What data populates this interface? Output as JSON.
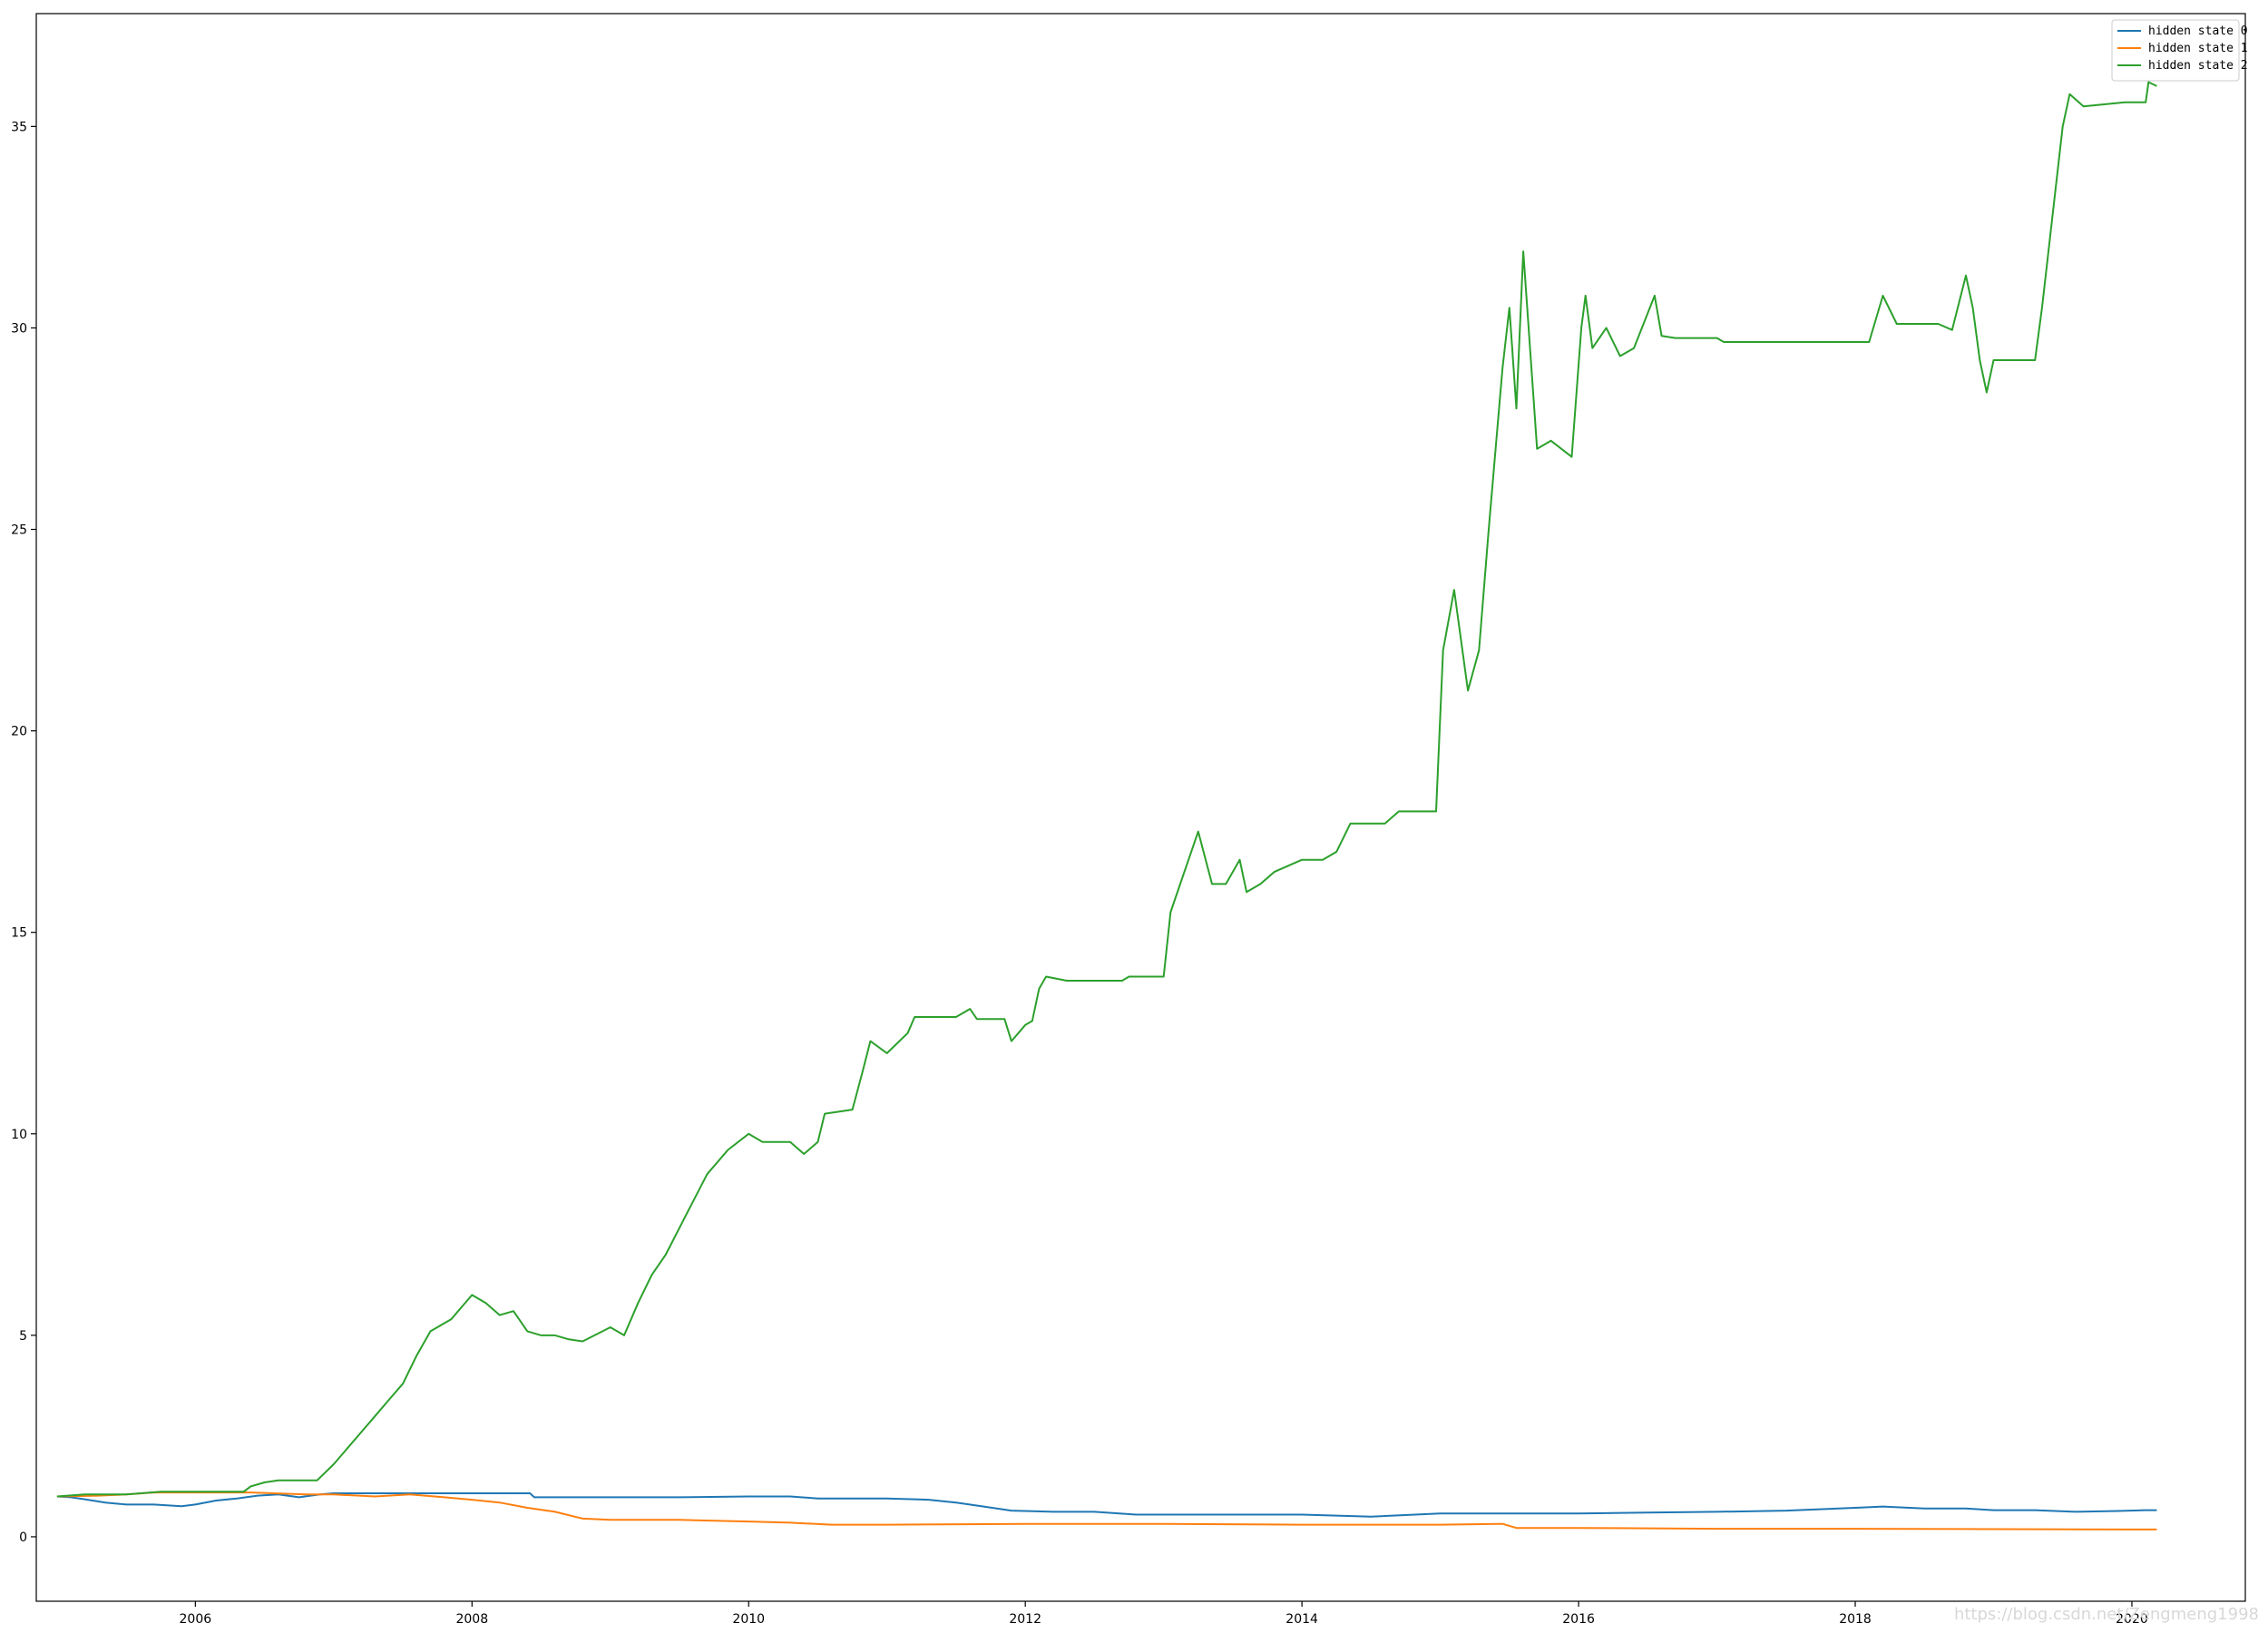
{
  "watermark": "https://blog.csdn.net/Zengmeng1998",
  "chart_data": {
    "type": "line",
    "title": "",
    "xlabel": "",
    "ylabel": "",
    "xlim": [
      2004.85,
      2020.82
    ],
    "ylim": [
      -1.6,
      37.8
    ],
    "grid": false,
    "legend_position": "top-right",
    "x_ticks": [
      2006,
      2008,
      2010,
      2012,
      2014,
      2016,
      2018,
      2020
    ],
    "x_tick_labels": [
      "2006",
      "2008",
      "2010",
      "2012",
      "2014",
      "2016",
      "2018",
      "2020"
    ],
    "y_ticks": [
      0,
      5,
      10,
      15,
      20,
      25,
      30,
      35
    ],
    "y_tick_labels": [
      "0",
      "5",
      "10",
      "15",
      "20",
      "25",
      "30",
      "35"
    ],
    "series": [
      {
        "name": "hidden state 0",
        "color": "#1f77b4",
        "points": [
          [
            2005.0,
            1.0
          ],
          [
            2005.1,
            0.98
          ],
          [
            2005.2,
            0.93
          ],
          [
            2005.35,
            0.85
          ],
          [
            2005.5,
            0.8
          ],
          [
            2005.7,
            0.8
          ],
          [
            2005.9,
            0.76
          ],
          [
            2006.0,
            0.8
          ],
          [
            2006.15,
            0.9
          ],
          [
            2006.3,
            0.95
          ],
          [
            2006.45,
            1.02
          ],
          [
            2006.6,
            1.05
          ],
          [
            2006.75,
            0.98
          ],
          [
            2006.9,
            1.05
          ],
          [
            2007.0,
            1.08
          ],
          [
            2007.3,
            1.08
          ],
          [
            2008.0,
            1.08
          ],
          [
            2008.42,
            1.08
          ],
          [
            2008.45,
            0.98
          ],
          [
            2009.0,
            0.98
          ],
          [
            2009.5,
            0.98
          ],
          [
            2010.0,
            1.0
          ],
          [
            2010.3,
            1.0
          ],
          [
            2010.5,
            0.95
          ],
          [
            2011.0,
            0.95
          ],
          [
            2011.3,
            0.92
          ],
          [
            2011.5,
            0.85
          ],
          [
            2011.7,
            0.75
          ],
          [
            2011.9,
            0.65
          ],
          [
            2012.2,
            0.62
          ],
          [
            2012.5,
            0.62
          ],
          [
            2012.8,
            0.55
          ],
          [
            2013.0,
            0.55
          ],
          [
            2013.5,
            0.55
          ],
          [
            2014.0,
            0.55
          ],
          [
            2014.5,
            0.5
          ],
          [
            2015.0,
            0.58
          ],
          [
            2015.5,
            0.58
          ],
          [
            2016.0,
            0.58
          ],
          [
            2016.5,
            0.6
          ],
          [
            2017.0,
            0.62
          ],
          [
            2017.5,
            0.65
          ],
          [
            2018.0,
            0.72
          ],
          [
            2018.2,
            0.75
          ],
          [
            2018.5,
            0.7
          ],
          [
            2018.8,
            0.7
          ],
          [
            2019.0,
            0.66
          ],
          [
            2019.3,
            0.66
          ],
          [
            2019.6,
            0.62
          ],
          [
            2019.9,
            0.64
          ],
          [
            2020.1,
            0.66
          ],
          [
            2020.18,
            0.66
          ]
        ]
      },
      {
        "name": "hidden state 1",
        "color": "#ff7f0e",
        "points": [
          [
            2005.0,
            1.0
          ],
          [
            2005.3,
            1.02
          ],
          [
            2005.5,
            1.05
          ],
          [
            2005.7,
            1.1
          ],
          [
            2006.0,
            1.1
          ],
          [
            2006.4,
            1.1
          ],
          [
            2006.8,
            1.05
          ],
          [
            2007.0,
            1.05
          ],
          [
            2007.3,
            1.0
          ],
          [
            2007.55,
            1.05
          ],
          [
            2007.8,
            0.98
          ],
          [
            2008.0,
            0.92
          ],
          [
            2008.2,
            0.85
          ],
          [
            2008.4,
            0.72
          ],
          [
            2008.6,
            0.62
          ],
          [
            2008.8,
            0.45
          ],
          [
            2009.0,
            0.42
          ],
          [
            2009.5,
            0.42
          ],
          [
            2010.0,
            0.38
          ],
          [
            2010.3,
            0.35
          ],
          [
            2010.6,
            0.3
          ],
          [
            2011.0,
            0.3
          ],
          [
            2012.0,
            0.32
          ],
          [
            2013.0,
            0.32
          ],
          [
            2014.0,
            0.3
          ],
          [
            2015.0,
            0.3
          ],
          [
            2015.45,
            0.32
          ],
          [
            2015.55,
            0.22
          ],
          [
            2016.0,
            0.22
          ],
          [
            2017.0,
            0.2
          ],
          [
            2018.0,
            0.2
          ],
          [
            2019.0,
            0.19
          ],
          [
            2020.0,
            0.18
          ],
          [
            2020.18,
            0.18
          ]
        ]
      },
      {
        "name": "hidden state 2",
        "color": "#2ca02c",
        "points": [
          [
            2005.0,
            1.0
          ],
          [
            2005.2,
            1.05
          ],
          [
            2005.5,
            1.05
          ],
          [
            2005.75,
            1.12
          ],
          [
            2006.0,
            1.12
          ],
          [
            2006.35,
            1.12
          ],
          [
            2006.4,
            1.25
          ],
          [
            2006.5,
            1.35
          ],
          [
            2006.6,
            1.4
          ],
          [
            2006.88,
            1.4
          ],
          [
            2007.0,
            1.8
          ],
          [
            2007.1,
            2.2
          ],
          [
            2007.2,
            2.6
          ],
          [
            2007.3,
            3.0
          ],
          [
            2007.4,
            3.4
          ],
          [
            2007.5,
            3.8
          ],
          [
            2007.6,
            4.5
          ],
          [
            2007.7,
            5.1
          ],
          [
            2007.85,
            5.4
          ],
          [
            2008.0,
            6.0
          ],
          [
            2008.1,
            5.8
          ],
          [
            2008.2,
            5.5
          ],
          [
            2008.3,
            5.6
          ],
          [
            2008.4,
            5.1
          ],
          [
            2008.5,
            5.0
          ],
          [
            2008.6,
            5.0
          ],
          [
            2008.7,
            4.9
          ],
          [
            2008.8,
            4.85
          ],
          [
            2009.0,
            5.2
          ],
          [
            2009.1,
            5.0
          ],
          [
            2009.2,
            5.8
          ],
          [
            2009.3,
            6.5
          ],
          [
            2009.4,
            7.0
          ],
          [
            2009.55,
            8.0
          ],
          [
            2009.7,
            9.0
          ],
          [
            2009.85,
            9.6
          ],
          [
            2010.0,
            10.0
          ],
          [
            2010.1,
            9.8
          ],
          [
            2010.3,
            9.8
          ],
          [
            2010.4,
            9.5
          ],
          [
            2010.5,
            9.8
          ],
          [
            2010.55,
            10.5
          ],
          [
            2010.75,
            10.6
          ],
          [
            2010.82,
            11.5
          ],
          [
            2010.88,
            12.3
          ],
          [
            2011.0,
            12.0
          ],
          [
            2011.15,
            12.5
          ],
          [
            2011.2,
            12.9
          ],
          [
            2011.5,
            12.9
          ],
          [
            2011.6,
            13.1
          ],
          [
            2011.65,
            12.85
          ],
          [
            2011.85,
            12.85
          ],
          [
            2011.9,
            12.3
          ],
          [
            2012.0,
            12.7
          ],
          [
            2012.05,
            12.8
          ],
          [
            2012.1,
            13.6
          ],
          [
            2012.15,
            13.9
          ],
          [
            2012.3,
            13.8
          ],
          [
            2012.7,
            13.8
          ],
          [
            2012.75,
            13.9
          ],
          [
            2013.0,
            13.9
          ],
          [
            2013.05,
            15.5
          ],
          [
            2013.15,
            16.5
          ],
          [
            2013.25,
            17.5
          ],
          [
            2013.35,
            16.2
          ],
          [
            2013.45,
            16.2
          ],
          [
            2013.55,
            16.8
          ],
          [
            2013.6,
            16.0
          ],
          [
            2013.7,
            16.2
          ],
          [
            2013.8,
            16.5
          ],
          [
            2014.0,
            16.8
          ],
          [
            2014.15,
            16.8
          ],
          [
            2014.25,
            17.0
          ],
          [
            2014.35,
            17.7
          ],
          [
            2014.6,
            17.7
          ],
          [
            2014.7,
            18.0
          ],
          [
            2014.9,
            18.0
          ],
          [
            2014.97,
            18.0
          ],
          [
            2015.02,
            22.0
          ],
          [
            2015.1,
            23.5
          ],
          [
            2015.2,
            21.0
          ],
          [
            2015.28,
            22.0
          ],
          [
            2015.35,
            25.0
          ],
          [
            2015.45,
            29.0
          ],
          [
            2015.5,
            30.5
          ],
          [
            2015.55,
            28.0
          ],
          [
            2015.6,
            31.9
          ],
          [
            2015.7,
            27.0
          ],
          [
            2015.8,
            27.2
          ],
          [
            2015.95,
            26.8
          ],
          [
            2016.02,
            30.0
          ],
          [
            2016.05,
            30.8
          ],
          [
            2016.1,
            29.5
          ],
          [
            2016.2,
            30.0
          ],
          [
            2016.3,
            29.3
          ],
          [
            2016.4,
            29.5
          ],
          [
            2016.55,
            30.8
          ],
          [
            2016.6,
            29.8
          ],
          [
            2016.7,
            29.75
          ],
          [
            2017.0,
            29.75
          ],
          [
            2017.05,
            29.65
          ],
          [
            2018.1,
            29.65
          ],
          [
            2018.2,
            30.8
          ],
          [
            2018.3,
            30.1
          ],
          [
            2018.6,
            30.1
          ],
          [
            2018.7,
            29.95
          ],
          [
            2018.8,
            31.3
          ],
          [
            2018.85,
            30.5
          ],
          [
            2018.9,
            29.2
          ],
          [
            2018.95,
            28.4
          ],
          [
            2019.0,
            29.2
          ],
          [
            2019.3,
            29.2
          ],
          [
            2019.35,
            30.5
          ],
          [
            2019.4,
            32.0
          ],
          [
            2019.45,
            33.5
          ],
          [
            2019.5,
            35.0
          ],
          [
            2019.55,
            35.8
          ],
          [
            2019.65,
            35.5
          ],
          [
            2019.95,
            35.6
          ],
          [
            2020.1,
            35.6
          ],
          [
            2020.12,
            36.1
          ],
          [
            2020.18,
            36.0
          ]
        ]
      }
    ]
  }
}
